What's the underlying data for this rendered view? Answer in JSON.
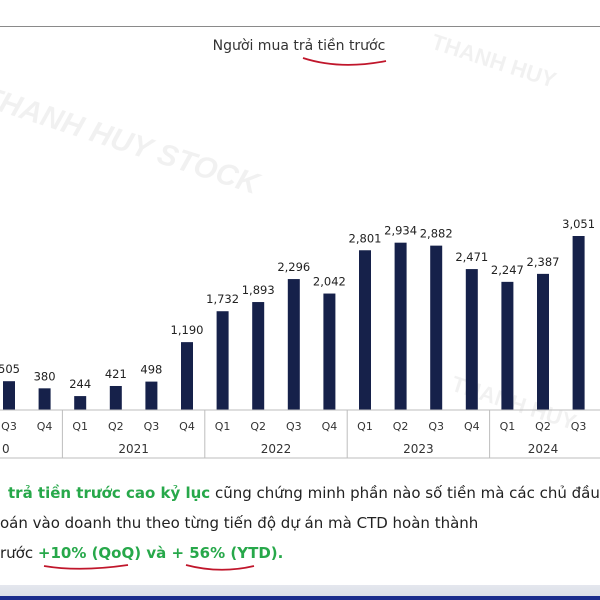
{
  "chart_data": {
    "type": "bar",
    "title": "Người mua trả tiền trước",
    "bar_color": "#16214a",
    "categories": [
      "Q3",
      "Q4",
      "Q1",
      "Q2",
      "Q3",
      "Q4",
      "Q1",
      "Q2",
      "Q3",
      "Q4",
      "Q1",
      "Q2",
      "Q3",
      "Q4",
      "Q1",
      "Q2",
      "Q3"
    ],
    "values": [
      505,
      380,
      244,
      421,
      498,
      1190,
      1732,
      1893,
      2296,
      2042,
      2801,
      2934,
      2882,
      2471,
      2247,
      2387,
      3051
    ],
    "value_labels": [
      "505",
      "380",
      "244",
      "421",
      "498",
      "1,190",
      "1,732",
      "1,893",
      "2,296",
      "2,042",
      "2,801",
      "2,934",
      "2,882",
      "2,471",
      "2,247",
      "2,387",
      "3,051"
    ],
    "years": [
      {
        "label": "0",
        "start": 0,
        "end": 1
      },
      {
        "label": "2021",
        "start": 2,
        "end": 5
      },
      {
        "label": "2022",
        "start": 6,
        "end": 9
      },
      {
        "label": "2023",
        "start": 10,
        "end": 13
      },
      {
        "label": "2024",
        "start": 14,
        "end": 16
      }
    ],
    "grid": false,
    "legend": "none"
  },
  "watermarks": [
    "THANH HUY STOCK",
    "THANH HUY",
    "THANH HUY STOCK",
    "THANH HUY"
  ],
  "text": {
    "line1_highlight": "trả tiền trước cao kỷ lục",
    "line1_rest": " cũng chứng minh phần nào số tiền mà các chủ đầu",
    "line2": "oán vào doanh thu theo từng tiến độ dự án mà CTD hoàn thành",
    "line3_prefix": "rước ",
    "line3_qoq": "+10% (QoQ)",
    "line3_mid": " và ",
    "line3_ytd": "+ 56% (YTD)",
    "line3_end": "."
  },
  "colors": {
    "highlight": "#27a84a",
    "annotation": "#c0162b",
    "bottom_bar": "#1a2c8c"
  }
}
